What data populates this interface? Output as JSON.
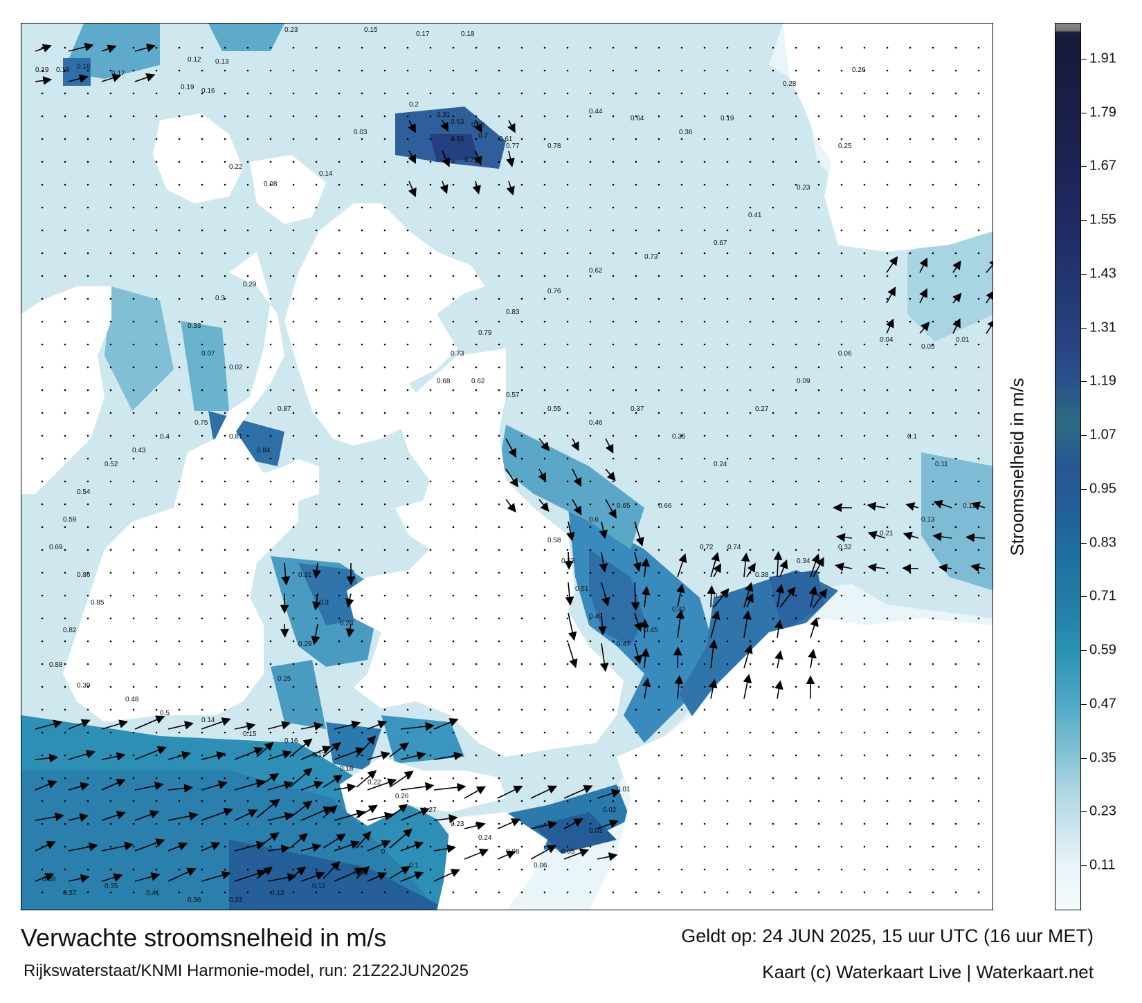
{
  "map": {
    "title": "Verwachte stroomsnelheid in m/s",
    "model_run": "Rijkswaterstaat/KNMI Harmonie-model, run: 21Z22JUN2025",
    "valid_time": "Geldt op: 24 JUN 2025, 15 uur UTC (16 uur MET)",
    "credit": "Kaart (c) Waterkaart Live | Waterkaart.net",
    "colorbar": {
      "title": "Stroomsnelheid in m/s",
      "ticks": [
        "0.11",
        "0.23",
        "0.35",
        "0.47",
        "0.59",
        "0.71",
        "0.83",
        "0.95",
        "1.07",
        "1.19",
        "1.31",
        "1.43",
        "1.55",
        "1.67",
        "1.79",
        "1.91"
      ],
      "colors": {
        "low": "#f5fbfd",
        "mid": "#2c93b5",
        "high": "#181c3a"
      }
    },
    "labels": [
      {
        "v": "0.19"
      },
      {
        "v": "0.18"
      },
      {
        "v": "0.16"
      },
      {
        "v": "0.17"
      },
      {
        "v": "0.23"
      },
      {
        "v": "0.15"
      },
      {
        "v": "0.17"
      },
      {
        "v": "0.18"
      },
      {
        "v": "0.12"
      },
      {
        "v": "0.13"
      },
      {
        "v": "0.19"
      },
      {
        "v": "0.16"
      },
      {
        "v": "0.22"
      },
      {
        "v": "0.08"
      },
      {
        "v": "0.14"
      },
      {
        "v": "0.03"
      },
      {
        "v": "0.2"
      },
      {
        "v": "0.31"
      },
      {
        "v": "0.63"
      },
      {
        "v": "0.55"
      },
      {
        "v": "0.56"
      },
      {
        "v": "0.7"
      },
      {
        "v": "0.61"
      },
      {
        "v": "0.77"
      },
      {
        "v": "0.71"
      },
      {
        "v": "0.78"
      },
      {
        "v": "0.44"
      },
      {
        "v": "0.64"
      },
      {
        "v": "0.36"
      },
      {
        "v": "0.19"
      },
      {
        "v": "0.28"
      },
      {
        "v": "0.26"
      },
      {
        "v": "0.25"
      },
      {
        "v": "0.23"
      },
      {
        "v": "0.41"
      },
      {
        "v": "0.67"
      },
      {
        "v": "0.73"
      },
      {
        "v": "0.62"
      },
      {
        "v": "0.76"
      },
      {
        "v": "0.83"
      },
      {
        "v": "0.79"
      },
      {
        "v": "0.73"
      },
      {
        "v": "0.68"
      },
      {
        "v": "0.62"
      },
      {
        "v": "0.57"
      },
      {
        "v": "0.55"
      },
      {
        "v": "0.46"
      },
      {
        "v": "0.37"
      },
      {
        "v": "0.35"
      },
      {
        "v": "0.24"
      },
      {
        "v": "0.27"
      },
      {
        "v": "0.09"
      },
      {
        "v": "0.06"
      },
      {
        "v": "0.04"
      },
      {
        "v": "0.05"
      },
      {
        "v": "0.01"
      },
      {
        "v": "0.1"
      },
      {
        "v": "0.11"
      },
      {
        "v": "0.12"
      },
      {
        "v": "0.13"
      },
      {
        "v": "0.21"
      },
      {
        "v": "0.32"
      },
      {
        "v": "0.34"
      },
      {
        "v": "0.38"
      },
      {
        "v": "0.41"
      },
      {
        "v": "0.42"
      },
      {
        "v": "0.45"
      },
      {
        "v": "0.47"
      },
      {
        "v": "0.49"
      },
      {
        "v": "0.51"
      },
      {
        "v": "0.53"
      },
      {
        "v": "0.58"
      },
      {
        "v": "0.6"
      },
      {
        "v": "0.65"
      },
      {
        "v": "0.66"
      },
      {
        "v": "0.72"
      },
      {
        "v": "0.74"
      },
      {
        "v": "0.75"
      },
      {
        "v": "0.81"
      },
      {
        "v": "0.84"
      },
      {
        "v": "0.87"
      },
      {
        "v": "0.02"
      },
      {
        "v": "0.07"
      },
      {
        "v": "0.33"
      },
      {
        "v": "0.3"
      },
      {
        "v": "0.29"
      },
      {
        "v": "0.4"
      },
      {
        "v": "0.43"
      },
      {
        "v": "0.52"
      },
      {
        "v": "0.54"
      },
      {
        "v": "0.59"
      },
      {
        "v": "0.69"
      },
      {
        "v": "0.86"
      },
      {
        "v": "0.85"
      },
      {
        "v": "0.82"
      },
      {
        "v": "0.88"
      },
      {
        "v": "0.39"
      },
      {
        "v": "0.48"
      },
      {
        "v": "0.5"
      },
      {
        "v": "0.14"
      },
      {
        "v": "0.15"
      },
      {
        "v": "0.16"
      },
      {
        "v": "0.17"
      },
      {
        "v": "0.18"
      },
      {
        "v": "0.22"
      },
      {
        "v": "0.26"
      },
      {
        "v": "0.27"
      },
      {
        "v": "0.23"
      },
      {
        "v": "0.24"
      },
      {
        "v": "0.08"
      },
      {
        "v": "0.06"
      },
      {
        "v": "0.05"
      },
      {
        "v": "0.03"
      },
      {
        "v": "0.02"
      },
      {
        "v": "0.01"
      },
      {
        "v": "0"
      },
      {
        "v": "0.1"
      },
      {
        "v": "0.11"
      },
      {
        "v": "0.12"
      },
      {
        "v": "0.13"
      },
      {
        "v": "0.33"
      },
      {
        "v": "0.36"
      },
      {
        "v": "0.41"
      },
      {
        "v": "0.35"
      },
      {
        "v": "0.37"
      },
      {
        "v": "0.38"
      },
      {
        "v": "0.31"
      },
      {
        "v": "0.3"
      },
      {
        "v": "0.28"
      },
      {
        "v": "0.29"
      },
      {
        "v": "0.25"
      },
      {
        "v": "0.2"
      },
      {
        "v": "0.21"
      },
      {
        "v": "0.19"
      },
      {
        "v": "0.15"
      },
      {
        "v": "0.14"
      }
    ]
  }
}
